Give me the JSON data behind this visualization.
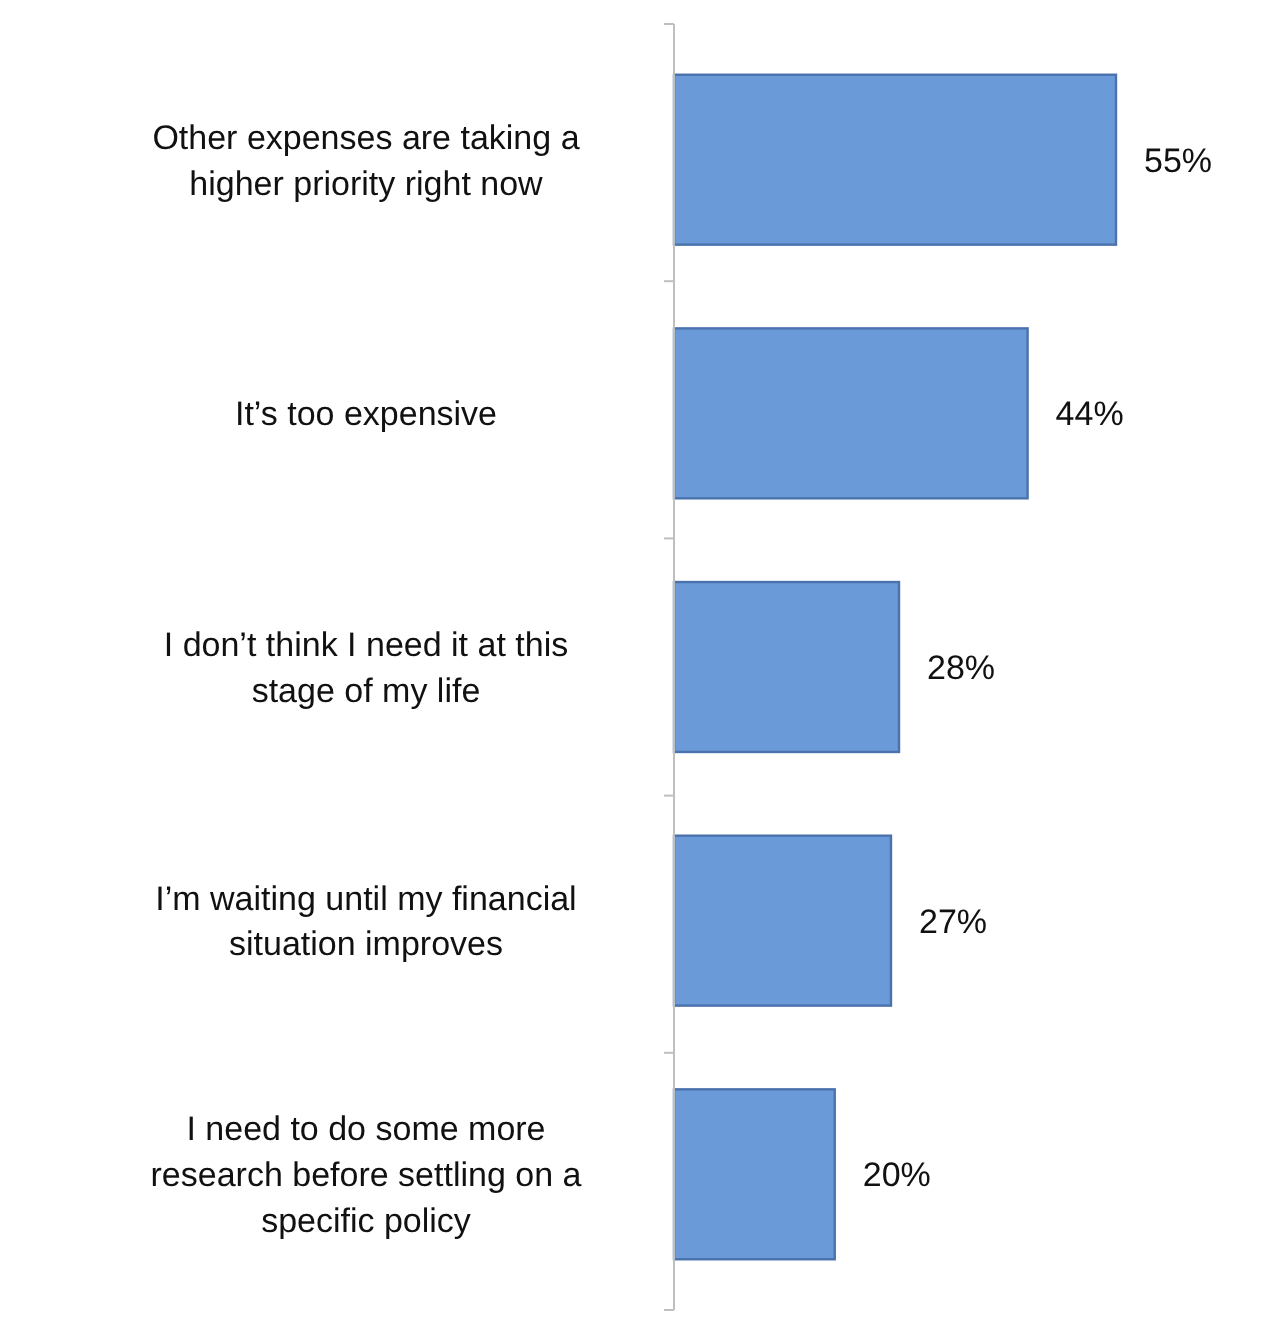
{
  "chart_data": {
    "type": "bar",
    "orientation": "horizontal",
    "categories": [
      "Other expenses are taking a higher priority right now",
      "It’s too expensive",
      "I don’t think I need it at this stage of my life",
      "I’m waiting until my financial situation improves",
      "I need to do some more research before settling on a specific policy"
    ],
    "values": [
      55,
      44,
      28,
      27,
      20
    ],
    "value_labels": [
      "55%",
      "44%",
      "28%",
      "27%",
      "20%"
    ],
    "color": "#6b9ad8"
  }
}
